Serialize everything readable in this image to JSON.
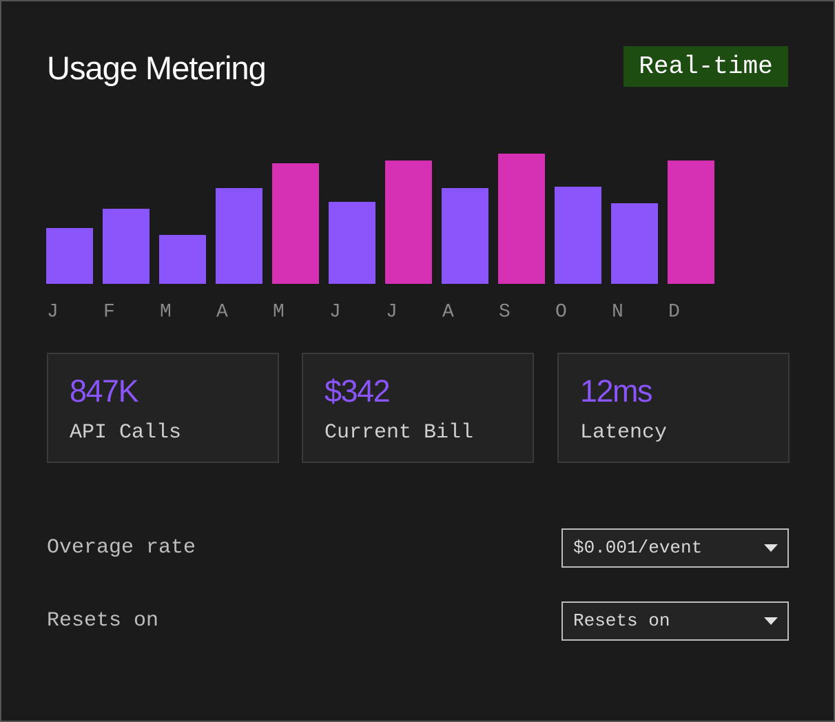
{
  "header": {
    "title": "Usage Metering",
    "badge": "Real-time"
  },
  "chart_data": {
    "type": "bar",
    "categories": [
      "J",
      "F",
      "M",
      "A",
      "M",
      "J",
      "J",
      "A",
      "S",
      "O",
      "N",
      "D"
    ],
    "values": [
      81,
      109,
      71,
      139,
      175,
      119,
      179,
      139,
      189,
      141,
      117,
      179
    ],
    "colors": [
      "#8a55fb",
      "#8a55fb",
      "#8a55fb",
      "#8a55fb",
      "#d630b4",
      "#8a55fb",
      "#d630b4",
      "#8a55fb",
      "#d630b4",
      "#8a55fb",
      "#8a55fb",
      "#d630b4"
    ],
    "ylim": [
      0,
      200
    ]
  },
  "stats": [
    {
      "value": "847K",
      "label": "API Calls"
    },
    {
      "value": "$342",
      "label": "Current Bill"
    },
    {
      "value": "12ms",
      "label": "Latency"
    }
  ],
  "settings": [
    {
      "label": "Overage rate",
      "selected": "$0.001/event"
    },
    {
      "label": "Resets on",
      "selected": "Resets on"
    }
  ]
}
